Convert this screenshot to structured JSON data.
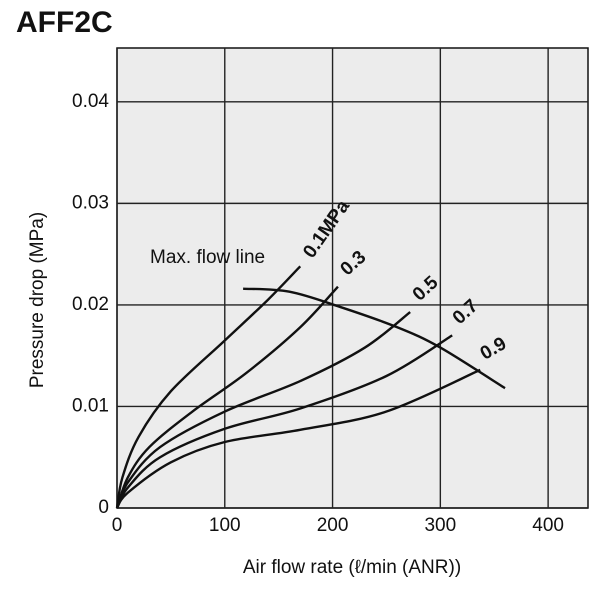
{
  "chart_data": {
    "type": "line",
    "title": "AFF2C",
    "x_label": "Air flow rate (ℓ/min (ANR))",
    "y_label": "Pressure drop (MPa)",
    "xlim": [
      0,
      437
    ],
    "ylim": [
      0,
      0.0453
    ],
    "xticks": [
      0,
      100,
      200,
      300,
      400
    ],
    "yticks": [
      0,
      0.01,
      0.02,
      0.03,
      0.04
    ],
    "grid": true,
    "color": "#111111",
    "series": [
      {
        "name": "0.1MPa",
        "x": [
          0,
          5,
          20,
          50,
          100,
          140,
          170
        ],
        "values": [
          0,
          0.003,
          0.007,
          0.0115,
          0.0165,
          0.0205,
          0.0238
        ]
      },
      {
        "name": "0.3",
        "x": [
          0,
          10,
          30,
          70,
          120,
          170,
          205
        ],
        "values": [
          0,
          0.003,
          0.006,
          0.0095,
          0.0133,
          0.0178,
          0.0218
        ]
      },
      {
        "name": "0.5",
        "x": [
          0,
          10,
          40,
          100,
          170,
          230,
          272
        ],
        "values": [
          0,
          0.0025,
          0.006,
          0.0095,
          0.0125,
          0.0158,
          0.0193
        ]
      },
      {
        "name": "0.7",
        "x": [
          0,
          10,
          40,
          100,
          170,
          250,
          311
        ],
        "values": [
          0,
          0.002,
          0.005,
          0.0078,
          0.0098,
          0.013,
          0.017
        ]
      },
      {
        "name": "0.9",
        "x": [
          0,
          10,
          50,
          100,
          170,
          250,
          337
        ],
        "values": [
          0,
          0.0015,
          0.0045,
          0.0065,
          0.0077,
          0.0095,
          0.0136
        ]
      },
      {
        "name": "Max. flow line",
        "x": [
          117,
          160,
          207,
          260,
          300,
          360
        ],
        "values": [
          0.0216,
          0.0213,
          0.0198,
          0.0178,
          0.0158,
          0.0118
        ]
      }
    ]
  }
}
